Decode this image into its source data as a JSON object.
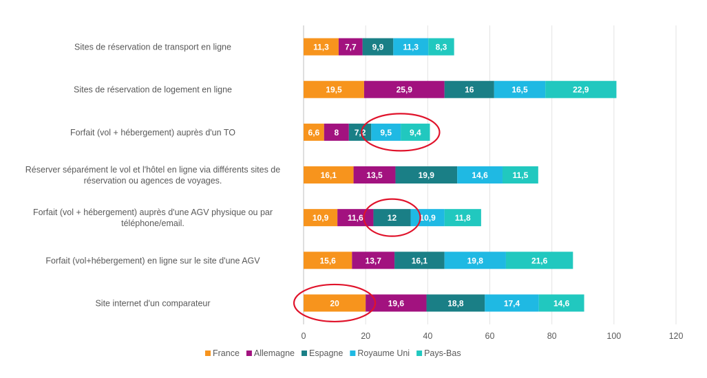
{
  "chart_data": {
    "type": "bar",
    "orientation": "horizontal",
    "stacked": true,
    "categories": [
      "Sites de réservation de transport en ligne",
      "Sites de réservation de logement en ligne",
      "Forfait (vol + hébergement) auprès d'un TO",
      "Réserver séparément le vol et l'hôtel en ligne via différents sites de réservation ou agences de voyages.",
      "Forfait (vol + hébergement) auprès d'une AGV physique ou par téléphone/email.",
      "Forfait (vol+hébergement) en ligne sur le site d'une AGV",
      "Site internet d'un comparateur"
    ],
    "series": [
      {
        "name": "France",
        "color": "#F7941D",
        "values": [
          11.3,
          19.5,
          6.6,
          16.1,
          10.9,
          15.6,
          20
        ],
        "labels": [
          "11,3",
          "19,5",
          "6,6",
          "16,1",
          "10,9",
          "15,6",
          "20"
        ]
      },
      {
        "name": "Allemagne",
        "color": "#A2127F",
        "values": [
          7.7,
          25.9,
          8,
          13.5,
          11.6,
          13.7,
          19.6
        ],
        "labels": [
          "7,7",
          "25,9",
          "8",
          "13,5",
          "11,6",
          "13,7",
          "19,6"
        ]
      },
      {
        "name": "Espagne",
        "color": "#1A7F86",
        "values": [
          9.9,
          16,
          7.2,
          19.9,
          12,
          16.1,
          18.8
        ],
        "labels": [
          "9,9",
          "16",
          "7,2",
          "19,9",
          "12",
          "16,1",
          "18,8"
        ]
      },
      {
        "name": "Royaume Uni",
        "color": "#1FB9E3",
        "values": [
          11.3,
          16.5,
          9.5,
          14.6,
          10.9,
          19.8,
          17.4
        ],
        "labels": [
          "11,3",
          "16,5",
          "9,5",
          "14,6",
          "10,9",
          "19,8",
          "17,4"
        ]
      },
      {
        "name": "Pays-Bas",
        "color": "#21C8BF",
        "values": [
          8.3,
          22.9,
          9.4,
          11.5,
          11.8,
          21.6,
          14.6
        ],
        "labels": [
          "8,3",
          "22,9",
          "9,4",
          "11,5",
          "11,8",
          "21,6",
          "14,6"
        ]
      }
    ],
    "xlim": [
      0,
      120
    ],
    "xticks": [
      0,
      20,
      40,
      60,
      80,
      100,
      120
    ],
    "grid": true,
    "legend_position": "bottom",
    "highlight_color": "#E0132B",
    "highlights": [
      {
        "category_index": 2,
        "series_indices": [
          3,
          4
        ]
      },
      {
        "category_index": 4,
        "series_indices": [
          2
        ]
      },
      {
        "category_index": 6,
        "series_indices": [
          0
        ]
      }
    ]
  }
}
